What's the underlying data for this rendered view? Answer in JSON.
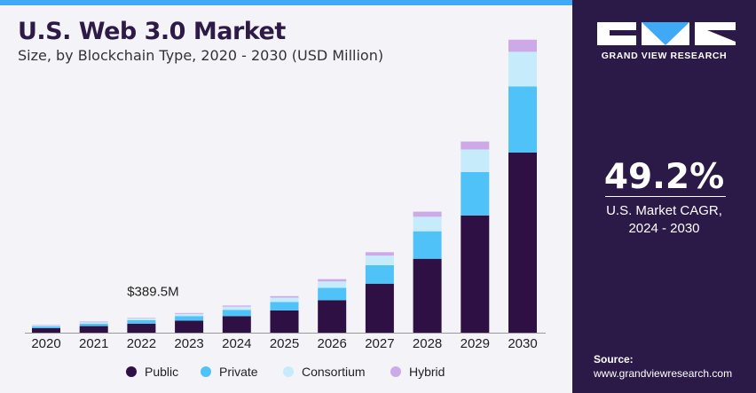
{
  "title": "U.S. Web 3.0 Market",
  "subtitle": "Size, by Blockchain Type, 2020 - 2030 (USD Million)",
  "brand": "GRAND VIEW RESEARCH",
  "cagr": {
    "value": "49.2%",
    "label_line1": "U.S. Market CAGR,",
    "label_line2": "2024 - 2030"
  },
  "source": {
    "title": "Source:",
    "url": "www.grandviewresearch.com"
  },
  "chart_data": {
    "type": "bar",
    "stacked": true,
    "categories": [
      "2020",
      "2021",
      "2022",
      "2023",
      "2024",
      "2025",
      "2026",
      "2027",
      "2028",
      "2029",
      "2030"
    ],
    "series": [
      {
        "name": "Public",
        "color": "#2e1045",
        "values": [
          120,
          175,
          240,
          320,
          440,
          590,
          860,
          1300,
          1960,
          3110,
          4780
        ]
      },
      {
        "name": "Private",
        "color": "#4fc3f7",
        "values": [
          45,
          65,
          90,
          120,
          165,
          225,
          330,
          490,
          730,
          1150,
          1750
        ]
      },
      {
        "name": "Consortium",
        "color": "#c6ebfb",
        "values": [
          25,
          35,
          45,
          60,
          85,
          115,
          170,
          255,
          385,
          600,
          920
        ]
      },
      {
        "name": "Hybrid",
        "color": "#cda9e8",
        "values": [
          14,
          20,
          15,
          22,
          30,
          40,
          60,
          90,
          135,
          210,
          320
        ]
      }
    ],
    "annotation": {
      "category": "2022",
      "text": "$389.5M"
    },
    "ylim": [
      0,
      8000
    ],
    "grid": false,
    "legend_position": "bottom"
  }
}
